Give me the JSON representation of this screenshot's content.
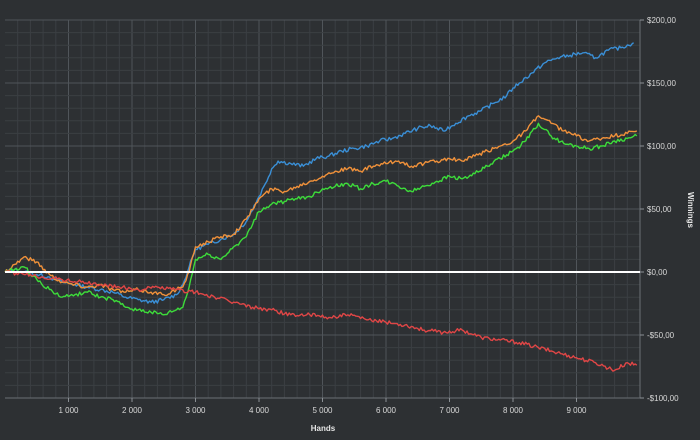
{
  "chart_data": {
    "type": "line",
    "title": "",
    "xlabel": "Hands",
    "ylabel": "Winnings",
    "xlim": [
      0,
      10000
    ],
    "ylim": [
      -100,
      200
    ],
    "grid": true,
    "zero_line": true,
    "y_axis_side": "right",
    "x_ticks": [
      1000,
      2000,
      3000,
      4000,
      5000,
      6000,
      7000,
      8000,
      9000
    ],
    "x_tick_labels": [
      "1 000",
      "2 000",
      "3 000",
      "4 000",
      "5 000",
      "6 000",
      "7 000",
      "8 000",
      "9 000"
    ],
    "y_ticks": [
      200,
      150,
      100,
      50,
      0,
      -50,
      -100
    ],
    "y_tick_labels": [
      "$200,00",
      "$150,00",
      "$100,00",
      "$50,00",
      "$0,00",
      "-$50,00",
      "-$100,00"
    ],
    "series": [
      {
        "color": "#3a8fd6",
        "x": [
          0,
          150,
          300,
          500,
          700,
          900,
          1100,
          1300,
          1500,
          1700,
          1900,
          2100,
          2300,
          2500,
          2700,
          2800,
          2900,
          3000,
          3200,
          3400,
          3600,
          3800,
          4000,
          4100,
          4200,
          4300,
          4500,
          4700,
          4900,
          5100,
          5300,
          5500,
          5700,
          5900,
          6100,
          6300,
          6500,
          6700,
          6900,
          7100,
          7300,
          7500,
          7700,
          7900,
          8000,
          8100,
          8300,
          8500,
          8700,
          8900,
          9100,
          9300,
          9500,
          9700,
          9900
        ],
        "y": [
          0,
          2,
          0,
          -2,
          -4,
          -8,
          -10,
          -12,
          -14,
          -16,
          -20,
          -22,
          -24,
          -22,
          -18,
          -10,
          4,
          18,
          22,
          26,
          30,
          40,
          60,
          70,
          82,
          88,
          86,
          84,
          90,
          92,
          96,
          98,
          100,
          104,
          106,
          110,
          114,
          116,
          112,
          118,
          124,
          128,
          134,
          140,
          146,
          150,
          158,
          166,
          170,
          172,
          174,
          170,
          176,
          178,
          182
        ]
      },
      {
        "color": "#f0913a",
        "x": [
          0,
          150,
          300,
          500,
          700,
          900,
          1100,
          1300,
          1500,
          1700,
          1900,
          2100,
          2300,
          2500,
          2700,
          2800,
          2900,
          3000,
          3200,
          3400,
          3600,
          3800,
          4000,
          4200,
          4400,
          4600,
          4800,
          5000,
          5200,
          5400,
          5600,
          5800,
          6000,
          6200,
          6400,
          6600,
          6800,
          7000,
          7200,
          7400,
          7600,
          7800,
          8000,
          8200,
          8400,
          8600,
          8800,
          9000,
          9200,
          9400,
          9600,
          9800,
          9950
        ],
        "y": [
          0,
          6,
          12,
          8,
          -2,
          -8,
          -10,
          -12,
          -10,
          -14,
          -16,
          -14,
          -16,
          -18,
          -14,
          -12,
          0,
          20,
          24,
          28,
          30,
          42,
          58,
          66,
          64,
          68,
          72,
          76,
          80,
          82,
          80,
          84,
          86,
          88,
          84,
          86,
          88,
          90,
          88,
          92,
          96,
          100,
          104,
          112,
          124,
          118,
          112,
          108,
          104,
          106,
          108,
          110,
          112
        ]
      },
      {
        "color": "#3ddc3a",
        "x": [
          0,
          150,
          300,
          500,
          700,
          900,
          1100,
          1300,
          1500,
          1700,
          1900,
          2100,
          2300,
          2500,
          2700,
          2800,
          2900,
          3000,
          3200,
          3400,
          3600,
          3800,
          4000,
          4200,
          4400,
          4600,
          4800,
          5000,
          5200,
          5400,
          5600,
          5800,
          6000,
          6200,
          6400,
          6600,
          6800,
          7000,
          7200,
          7400,
          7600,
          7800,
          8000,
          8200,
          8400,
          8600,
          8800,
          9000,
          9200,
          9400,
          9600,
          9800,
          9950
        ],
        "y": [
          0,
          2,
          4,
          -6,
          -14,
          -20,
          -18,
          -16,
          -20,
          -22,
          -28,
          -30,
          -32,
          -34,
          -30,
          -28,
          -12,
          10,
          14,
          10,
          20,
          28,
          48,
          54,
          56,
          58,
          60,
          66,
          68,
          70,
          66,
          70,
          72,
          68,
          64,
          68,
          72,
          76,
          74,
          78,
          84,
          90,
          96,
          104,
          118,
          108,
          102,
          100,
          98,
          100,
          104,
          106,
          108
        ]
      },
      {
        "color": "#e04646",
        "x": [
          0,
          300,
          600,
          900,
          1200,
          1500,
          1800,
          2100,
          2400,
          2700,
          3000,
          3300,
          3600,
          3900,
          4200,
          4500,
          4800,
          5100,
          5400,
          5700,
          6000,
          6300,
          6600,
          6900,
          7200,
          7500,
          7800,
          8100,
          8400,
          8700,
          9000,
          9300,
          9600,
          9800,
          9950
        ],
        "y": [
          0,
          -2,
          -4,
          -6,
          -8,
          -10,
          -12,
          -14,
          -12,
          -14,
          -16,
          -20,
          -24,
          -28,
          -30,
          -34,
          -34,
          -36,
          -34,
          -38,
          -40,
          -42,
          -46,
          -48,
          -46,
          -52,
          -54,
          -56,
          -60,
          -64,
          -68,
          -72,
          -78,
          -72,
          -74
        ]
      }
    ]
  }
}
